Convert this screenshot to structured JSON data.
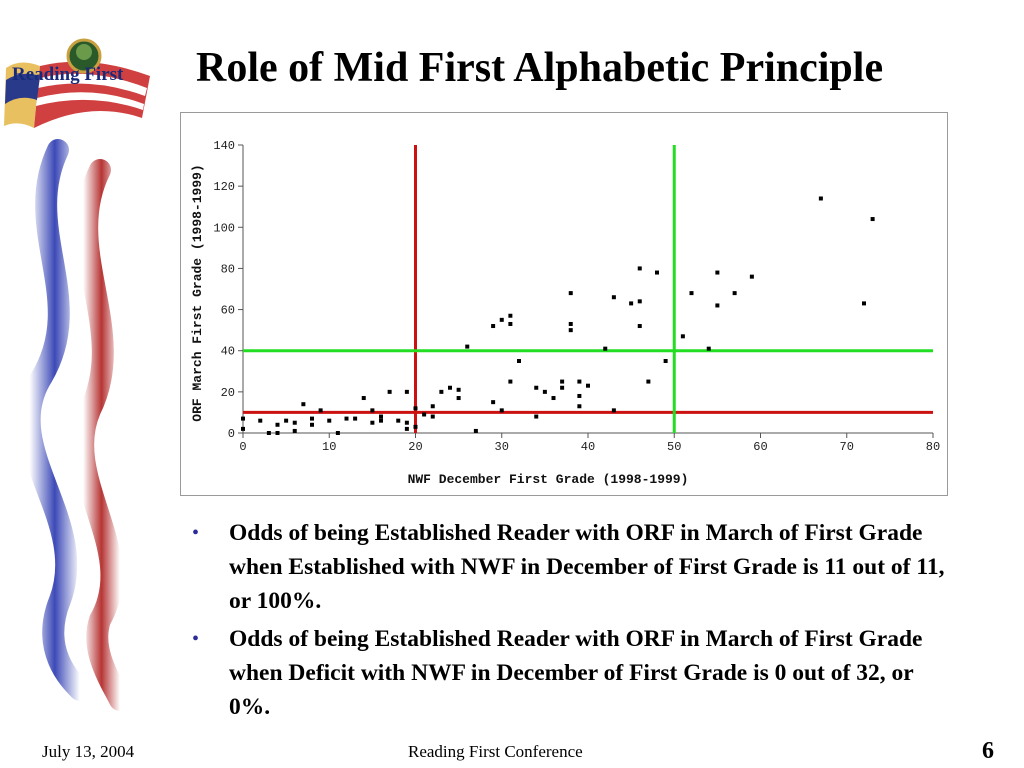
{
  "logo": {
    "text": "Reading First"
  },
  "slide": {
    "title": "Role of Mid First Alphabetic Principle",
    "bullets": [
      "Odds of being Established Reader with ORF in March of First Grade when Established with NWF in December of First Grade is 11 out of 11, or 100%.",
      "Odds of being Established Reader with ORF in March of First Grade when Deficit with NWF in December of First Grade is 0 out of 32, or 0%."
    ],
    "bullet_glyph": "•"
  },
  "footer": {
    "date": "July 13, 2004",
    "center": "Reading First Conference",
    "page": "6"
  },
  "colors": {
    "red_line": "#cc1111",
    "green_line": "#22dd22",
    "points": "#000000",
    "bullet": "#2b2b9a"
  },
  "chart_data": {
    "type": "scatter",
    "xlabel": "NWF December First Grade (1998-1999)",
    "ylabel": "ORF March First Grade (1998-1999)",
    "xlim": [
      0,
      80
    ],
    "ylim": [
      0,
      140
    ],
    "x_ticks": [
      0,
      10,
      20,
      30,
      40,
      50,
      60,
      70,
      80
    ],
    "y_ticks": [
      0,
      20,
      40,
      60,
      80,
      100,
      120,
      140
    ],
    "reference_lines": [
      {
        "axis": "x",
        "value": 20,
        "color": "#cc1111"
      },
      {
        "axis": "y",
        "value": 10,
        "color": "#cc1111"
      },
      {
        "axis": "x",
        "value": 50,
        "color": "#22dd22"
      },
      {
        "axis": "y",
        "value": 40,
        "color": "#22dd22"
      }
    ],
    "grid": false,
    "points": [
      [
        0,
        2
      ],
      [
        0,
        7
      ],
      [
        2,
        6
      ],
      [
        3,
        0
      ],
      [
        4,
        0
      ],
      [
        4,
        4
      ],
      [
        5,
        6
      ],
      [
        6,
        1
      ],
      [
        6,
        5
      ],
      [
        7,
        14
      ],
      [
        8,
        4
      ],
      [
        8,
        7
      ],
      [
        9,
        11
      ],
      [
        10,
        6
      ],
      [
        11,
        0
      ],
      [
        12,
        7
      ],
      [
        13,
        7
      ],
      [
        14,
        17
      ],
      [
        15,
        11
      ],
      [
        15,
        5
      ],
      [
        16,
        6
      ],
      [
        16,
        8
      ],
      [
        17,
        20
      ],
      [
        18,
        6
      ],
      [
        19,
        20
      ],
      [
        19,
        5
      ],
      [
        19,
        2
      ],
      [
        20,
        12
      ],
      [
        20,
        3
      ],
      [
        21,
        9
      ],
      [
        22,
        13
      ],
      [
        22,
        8
      ],
      [
        23,
        20
      ],
      [
        24,
        22
      ],
      [
        25,
        21
      ],
      [
        25,
        17
      ],
      [
        26,
        42
      ],
      [
        27,
        1
      ],
      [
        29,
        15
      ],
      [
        29,
        52
      ],
      [
        30,
        11
      ],
      [
        30,
        55
      ],
      [
        31,
        57
      ],
      [
        31,
        53
      ],
      [
        31,
        25
      ],
      [
        32,
        35
      ],
      [
        34,
        22
      ],
      [
        34,
        8
      ],
      [
        35,
        20
      ],
      [
        36,
        17
      ],
      [
        37,
        22
      ],
      [
        37,
        25
      ],
      [
        38,
        68
      ],
      [
        38,
        53
      ],
      [
        38,
        50
      ],
      [
        39,
        25
      ],
      [
        39,
        18
      ],
      [
        39,
        13
      ],
      [
        40,
        23
      ],
      [
        42,
        41
      ],
      [
        43,
        66
      ],
      [
        43,
        11
      ],
      [
        45,
        63
      ],
      [
        46,
        80
      ],
      [
        46,
        64
      ],
      [
        46,
        52
      ],
      [
        47,
        25
      ],
      [
        48,
        78
      ],
      [
        49,
        35
      ],
      [
        51,
        47
      ],
      [
        52,
        68
      ],
      [
        54,
        41
      ],
      [
        55,
        78
      ],
      [
        55,
        62
      ],
      [
        57,
        68
      ],
      [
        59,
        76
      ],
      [
        67,
        114
      ],
      [
        72,
        63
      ],
      [
        73,
        104
      ]
    ]
  }
}
